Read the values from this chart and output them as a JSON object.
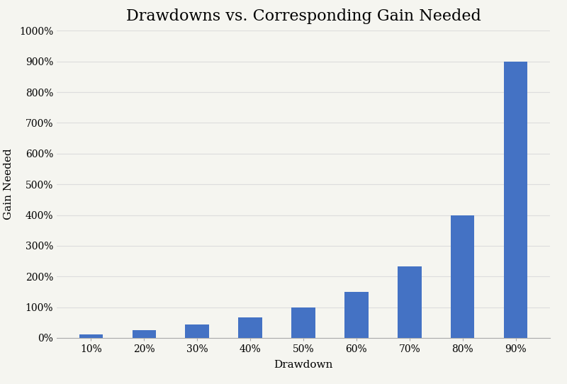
{
  "title": "Drawdowns vs. Corresponding Gain Needed",
  "xlabel": "Drawdown",
  "ylabel": "Gain Needed",
  "categories": [
    "10%",
    "20%",
    "30%",
    "40%",
    "50%",
    "60%",
    "70%",
    "80%",
    "90%"
  ],
  "gain_values": [
    0.1111,
    0.25,
    0.4286,
    0.6667,
    1.0,
    1.5,
    2.3333,
    4.0,
    9.0
  ],
  "bar_color": "#4472C4",
  "background_color": "#F5F5F0",
  "ylim": [
    0,
    10.0
  ],
  "yticks": [
    0,
    1,
    2,
    3,
    4,
    5,
    6,
    7,
    8,
    9,
    10
  ],
  "ytick_labels": [
    "0%",
    "100%",
    "200%",
    "300%",
    "400%",
    "500%",
    "600%",
    "700%",
    "800%",
    "900%",
    "1000%"
  ],
  "title_fontsize": 16,
  "axis_label_fontsize": 11,
  "tick_fontsize": 10,
  "bar_width": 0.45,
  "grid_color": "#DDDDDD",
  "grid_linewidth": 0.8,
  "spine_color": "#AAAAAA"
}
